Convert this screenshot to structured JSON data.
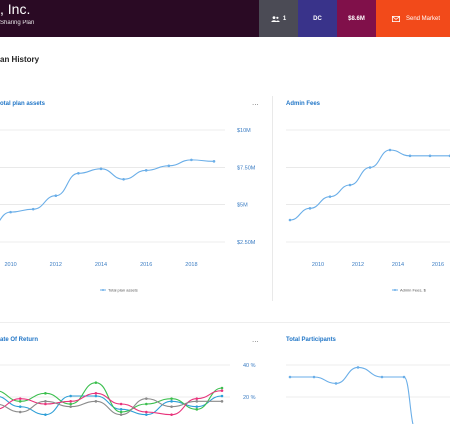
{
  "header": {
    "company": ", Inc.",
    "plan_name": "Sharing Plan",
    "users_count": "1",
    "plan_type": "DC",
    "amount": "$8.6M",
    "send_label": "Send Market"
  },
  "section": {
    "title": "an History"
  },
  "cards": {
    "plan_assets": {
      "title": "otal plan assets",
      "menu": "..."
    },
    "admin_fees": {
      "title": "Admin Fees",
      "menu": "..."
    },
    "rate_of_return": {
      "title": "ate Of Return",
      "menu": "..."
    },
    "participants": {
      "title": "Total Participants"
    }
  },
  "colors": {
    "accent": "#2176c7",
    "line": "#6aaee8",
    "header_bg": "#2a0a24",
    "send": "#f24a1a",
    "dc": "#39338a",
    "amount": "#80104a",
    "users": "#4b4b55"
  },
  "icons": {
    "users": "users-icon",
    "send": "mail-icon"
  },
  "chart_data": [
    {
      "type": "line",
      "title": "otal plan assets",
      "x": [
        2009,
        2010,
        2011,
        2012,
        2013,
        2014,
        2015,
        2016,
        2017,
        2018,
        2019
      ],
      "series": [
        {
          "name": "Total plan assets",
          "values": [
            3.3,
            4.5,
            4.7,
            5.6,
            7.1,
            7.4,
            6.7,
            7.3,
            7.6,
            8.0,
            7.9
          ]
        }
      ],
      "ylim": [
        2.5,
        10
      ],
      "yticks": [
        "$10M",
        "$7.50M",
        "$5M",
        "$2.50M"
      ],
      "xticks": [
        "2010",
        "2012",
        "2014",
        "2016",
        "2018"
      ],
      "legend": "bottom",
      "grid": true
    },
    {
      "type": "line",
      "title": "Admin Fees",
      "x": [
        2009,
        2010,
        2011,
        2012,
        2013,
        2014,
        2015,
        2016,
        2017
      ],
      "series": [
        {
          "name": "Admin Fees, $",
          "values": [
            2,
            3,
            4,
            5,
            6.5,
            8,
            7.5,
            7.5,
            7.5
          ]
        }
      ],
      "xticks": [
        "2010",
        "2012",
        "2014",
        "2016"
      ],
      "legend": "bottom",
      "grid": true
    },
    {
      "type": "line",
      "title": "ate Of Return",
      "yticks": [
        "40 %",
        "20 %"
      ],
      "ylim": [
        0,
        45
      ],
      "series": [
        {
          "color": "#2e9fd7",
          "values": [
            18,
            10,
            4,
            18,
            18,
            8,
            4,
            14,
            10,
            18
          ]
        },
        {
          "color": "#3bbf4e",
          "values": [
            22,
            14,
            20,
            12,
            28,
            6,
            12,
            16,
            8,
            24
          ]
        },
        {
          "color": "#e8337b",
          "values": [
            8,
            16,
            12,
            14,
            20,
            12,
            6,
            4,
            16,
            22
          ]
        },
        {
          "color": "#8b8b8b",
          "values": [
            12,
            6,
            14,
            10,
            14,
            4,
            16,
            10,
            14,
            14
          ]
        }
      ]
    },
    {
      "type": "line",
      "title": "Total Participants",
      "series": [
        {
          "name": "Total Participants",
          "values": [
            30,
            30,
            28,
            33,
            30,
            30,
            10
          ]
        }
      ]
    }
  ]
}
